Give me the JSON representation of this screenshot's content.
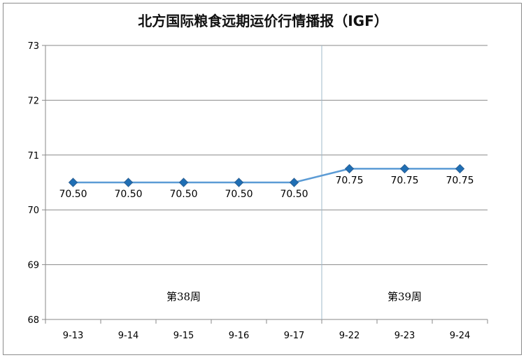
{
  "chart_data": {
    "type": "line",
    "title": "北方国际粮食远期运价行情播报（IGF）",
    "categories": [
      "9-13",
      "9-14",
      "9-15",
      "9-16",
      "9-17",
      "9-22",
      "9-23",
      "9-24"
    ],
    "values": [
      70.5,
      70.5,
      70.5,
      70.5,
      70.5,
      70.75,
      70.75,
      70.75
    ],
    "value_labels": [
      "70.50",
      "70.50",
      "70.50",
      "70.50",
      "70.50",
      "70.75",
      "70.75",
      "70.75"
    ],
    "ylim": [
      68,
      73
    ],
    "yticks": [
      "68",
      "69",
      "70",
      "71",
      "72",
      "73"
    ],
    "grid": true,
    "line_color": "#5b9bd5",
    "marker_color": "#1f6fb5",
    "groups": [
      {
        "label": "第38周",
        "categories": [
          "9-13",
          "9-14",
          "9-15",
          "9-16",
          "9-17"
        ]
      },
      {
        "label": "第39周",
        "categories": [
          "9-22",
          "9-23",
          "9-24"
        ]
      }
    ]
  }
}
